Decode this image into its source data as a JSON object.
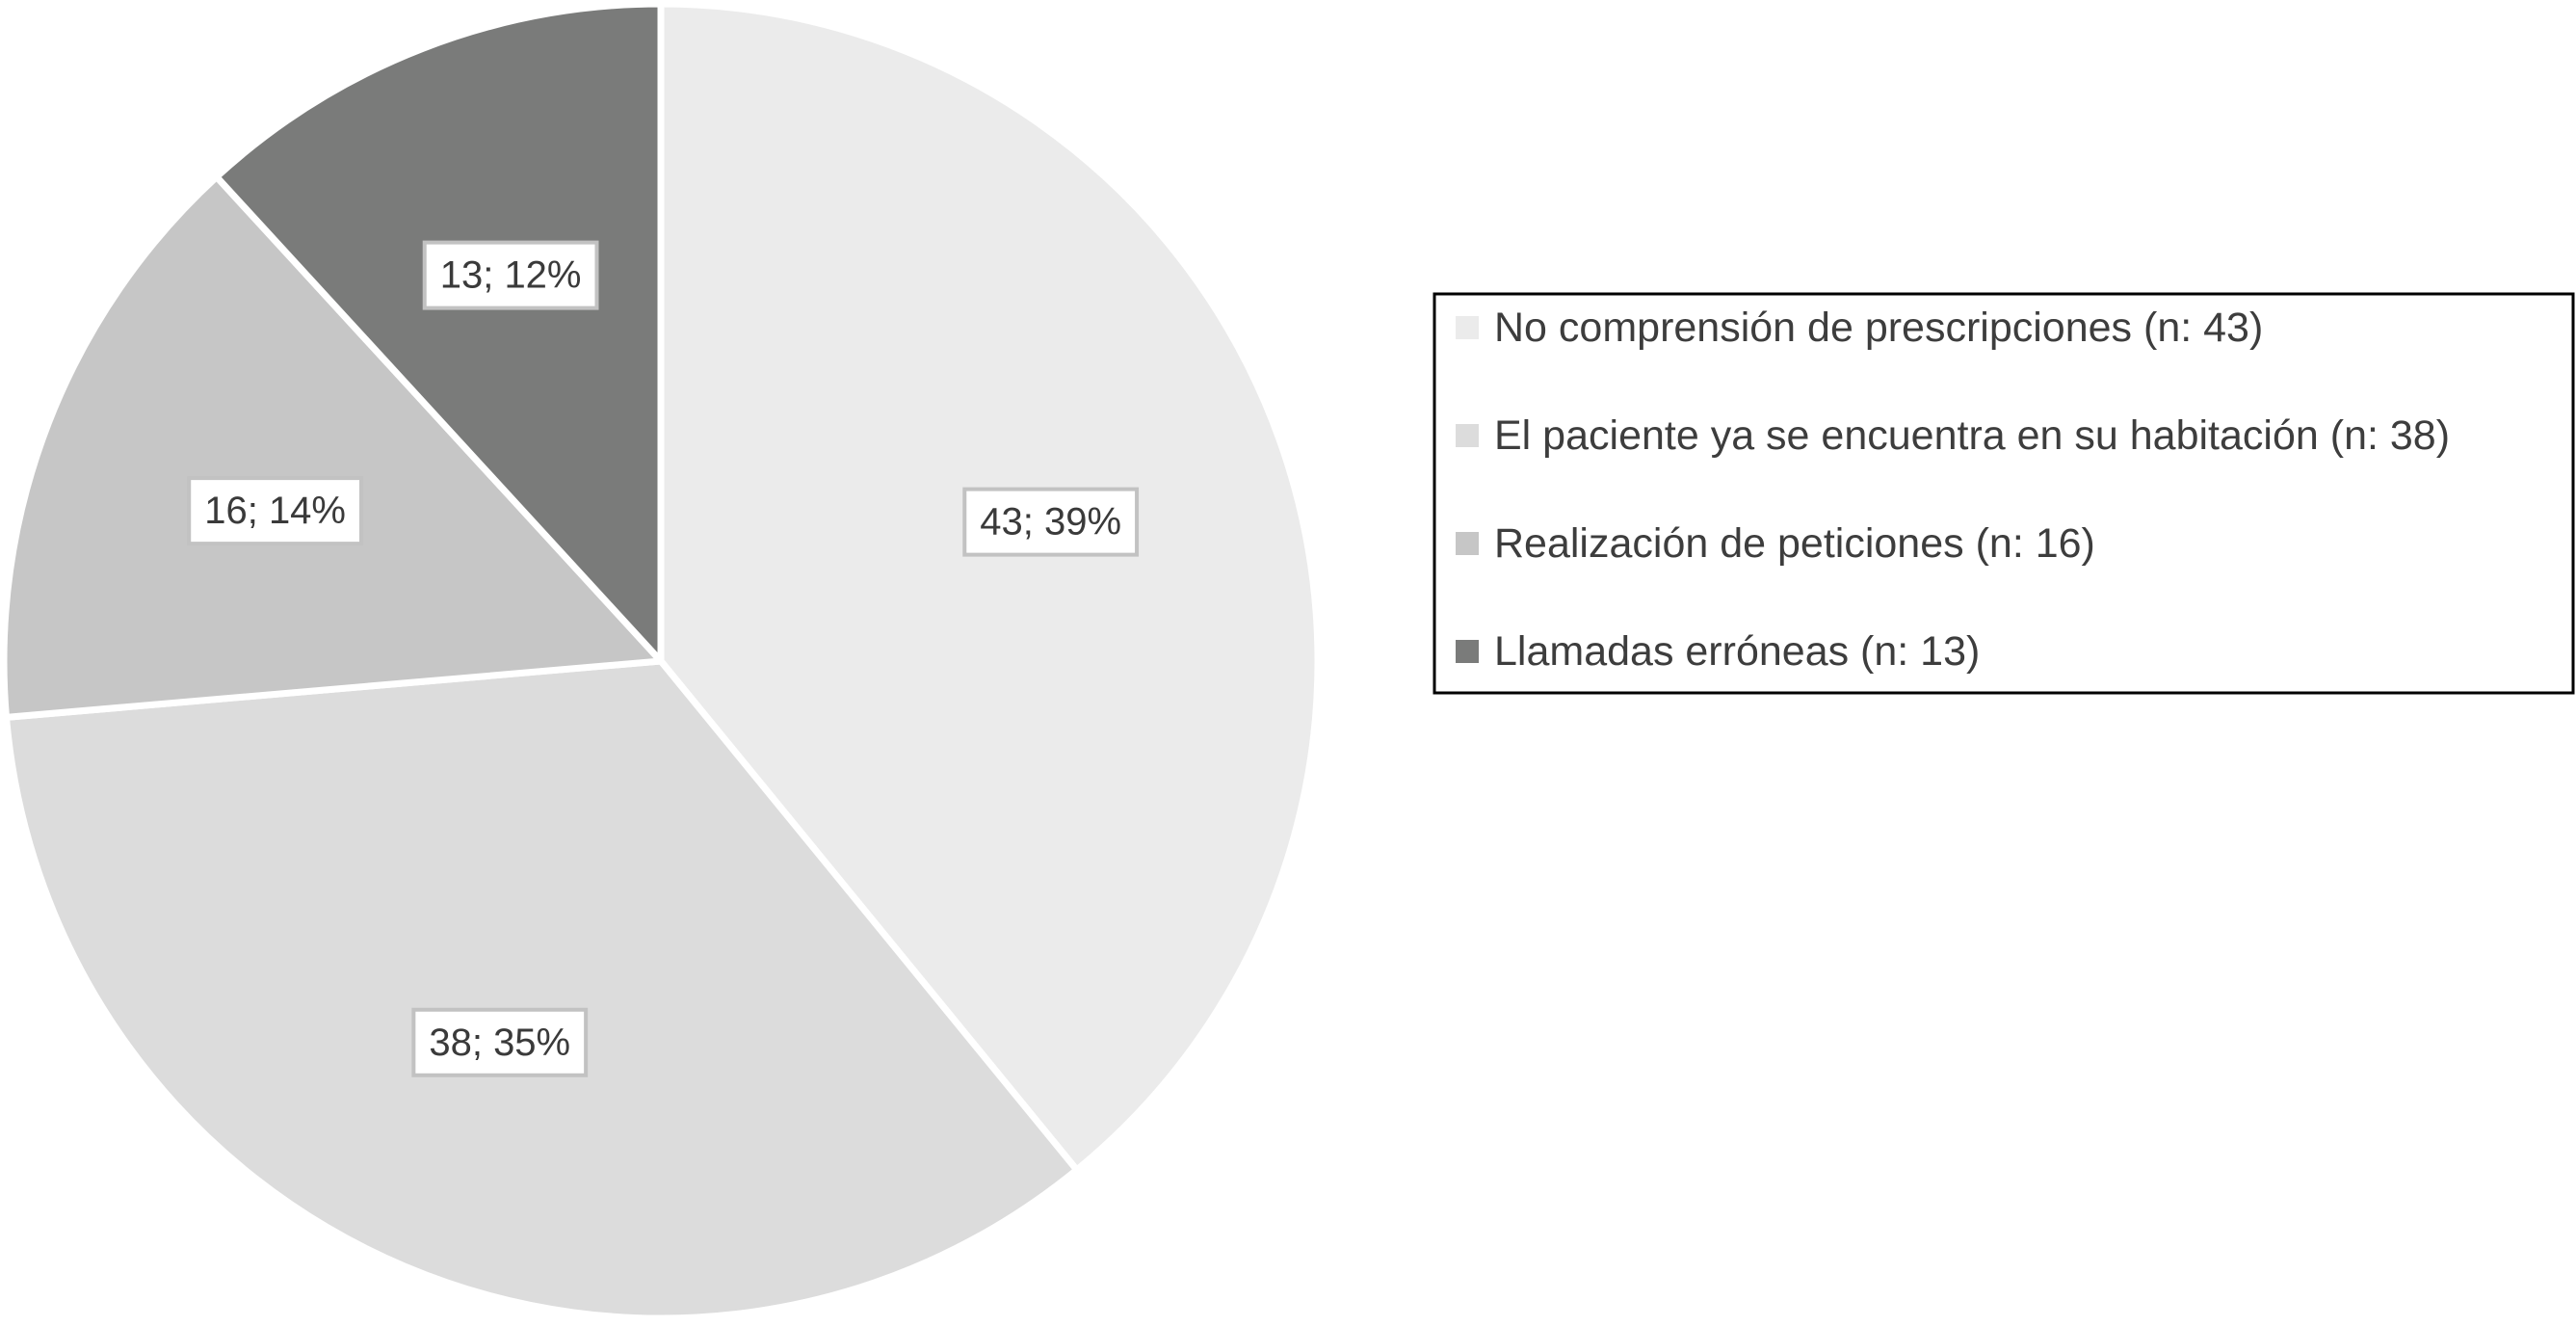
{
  "chart_data": {
    "type": "pie",
    "title": "",
    "legend_position": "right",
    "slices": [
      {
        "name": "No comprensión de prescripciones (n: 43)",
        "value": 43,
        "percent": 39,
        "label": "43; 39%",
        "color": "#ebebeb"
      },
      {
        "name": "El paciente ya se encuentra en su habitación (n: 38)",
        "value": 38,
        "percent": 35,
        "label": "38; 35%",
        "color": "#dcdcdc"
      },
      {
        "name": "Realización de peticiones (n: 16)",
        "value": 16,
        "percent": 14,
        "label": "16; 14%",
        "color": "#c6c6c6"
      },
      {
        "name": "Llamadas erróneas (n: 13)",
        "value": 13,
        "percent": 12,
        "label": "13; 12%",
        "color": "#7a7b7a"
      }
    ]
  }
}
